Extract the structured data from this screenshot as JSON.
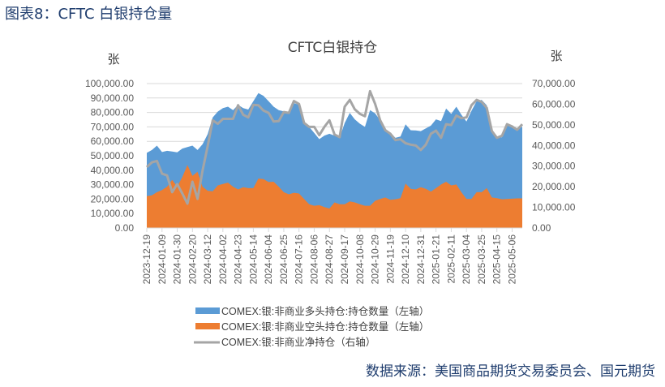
{
  "figure_title": "图表8：CFTC 白银持仓量",
  "source": "数据来源：美国商品期货交易委员会、国元期货",
  "chart_data": {
    "type": "area",
    "title": "CFTC白银持仓",
    "ylabel_left": "张",
    "ylabel_right": "张",
    "ylim_left": [
      0,
      100000
    ],
    "ylim_right": [
      0,
      70000
    ],
    "yticks_left": [
      "0.00",
      "10,000.00",
      "20,000.00",
      "30,000.00",
      "40,000.00",
      "50,000.00",
      "60,000.00",
      "70,000.00",
      "80,000.00",
      "90,000.00",
      "100,000.00"
    ],
    "yticks_right": [
      "0.00",
      "10,000.00",
      "20,000.00",
      "30,000.00",
      "40,000.00",
      "50,000.00",
      "60,000.00",
      "70,000.00"
    ],
    "grid": true,
    "legend_position": "bottom-left",
    "x_tick_labels": [
      "2023-12-19",
      "2024-01-09",
      "2024-01-30",
      "2024-02-20",
      "2024-03-12",
      "2024-04-02",
      "2024-04-23",
      "2024-05-14",
      "2024-06-04",
      "2024-06-25",
      "2024-07-16",
      "2024-08-06",
      "2024-08-27",
      "2024-09-17",
      "2024-10-08",
      "2024-10-29",
      "2024-11-19",
      "2024-12-10",
      "2024-12-31",
      "2025-01-21",
      "2025-02-11",
      "2025-03-04",
      "2025-03-25",
      "2025-04-15",
      "2025-05-06"
    ],
    "x": [
      "2023-12-19",
      "2023-12-26",
      "2024-01-02",
      "2024-01-09",
      "2024-01-16",
      "2024-01-23",
      "2024-01-30",
      "2024-02-06",
      "2024-02-13",
      "2024-02-20",
      "2024-02-27",
      "2024-03-05",
      "2024-03-12",
      "2024-03-19",
      "2024-03-26",
      "2024-04-02",
      "2024-04-09",
      "2024-04-16",
      "2024-04-23",
      "2024-04-30",
      "2024-05-07",
      "2024-05-14",
      "2024-05-21",
      "2024-05-28",
      "2024-06-04",
      "2024-06-11",
      "2024-06-18",
      "2024-06-25",
      "2024-07-02",
      "2024-07-09",
      "2024-07-16",
      "2024-07-23",
      "2024-07-30",
      "2024-08-06",
      "2024-08-13",
      "2024-08-20",
      "2024-08-27",
      "2024-09-03",
      "2024-09-10",
      "2024-09-17",
      "2024-09-24",
      "2024-10-01",
      "2024-10-08",
      "2024-10-15",
      "2024-10-22",
      "2024-10-29",
      "2024-11-05",
      "2024-11-12",
      "2024-11-19",
      "2024-11-26",
      "2024-12-03",
      "2024-12-10",
      "2024-12-17",
      "2024-12-24",
      "2024-12-31",
      "2025-01-07",
      "2025-01-14",
      "2025-01-21",
      "2025-01-28",
      "2025-02-04",
      "2025-02-11",
      "2025-02-18",
      "2025-02-25",
      "2025-03-04",
      "2025-03-11",
      "2025-03-18",
      "2025-03-25",
      "2025-04-01",
      "2025-04-08",
      "2025-04-15",
      "2025-04-22",
      "2025-04-29",
      "2025-05-06",
      "2025-05-13",
      "2025-05-20"
    ],
    "series": [
      {
        "name": "COMEX:银:非商业多头持仓:持仓数量（左轴）",
        "axis": "left",
        "kind": "area",
        "color": "#5b9bd5",
        "values": [
          52000,
          54000,
          57000,
          52600,
          53400,
          53000,
          52400,
          55000,
          56000,
          57000,
          54000,
          58000,
          65000,
          76500,
          80600,
          83000,
          84000,
          81600,
          85300,
          83000,
          82000,
          87800,
          93400,
          91500,
          87800,
          84000,
          81600,
          80800,
          80300,
          86500,
          85300,
          73700,
          70000,
          65800,
          61500,
          64000,
          65200,
          64000,
          62400,
          72700,
          79700,
          75200,
          72200,
          70000,
          81600,
          79300,
          74600,
          68400,
          66200,
          62400,
          63300,
          71800,
          67700,
          67500,
          67100,
          69000,
          70900,
          75200,
          74000,
          82700,
          79000,
          84000,
          78400,
          73700,
          81200,
          87800,
          88700,
          85000,
          68000,
          63300,
          62800,
          71800,
          70900,
          69000,
          70000
        ]
      },
      {
        "name": "COMEX:银:非商业空头持仓:持仓数量（左轴）",
        "axis": "left",
        "kind": "area",
        "color": "#ed7d31",
        "values": [
          22000,
          22600,
          24800,
          26300,
          28600,
          33300,
          28600,
          35200,
          43600,
          36100,
          38900,
          28600,
          25800,
          25400,
          29500,
          30500,
          31400,
          28600,
          26700,
          28200,
          27600,
          27600,
          34200,
          33800,
          31800,
          32000,
          28600,
          24800,
          23300,
          24400,
          23900,
          20100,
          16400,
          15400,
          15800,
          14500,
          13500,
          17700,
          16400,
          16400,
          18400,
          17700,
          16400,
          15400,
          15400,
          18800,
          20100,
          21100,
          19500,
          19900,
          20700,
          30800,
          27100,
          26700,
          28200,
          27100,
          25200,
          27600,
          30100,
          32000,
          29500,
          30100,
          24800,
          20100,
          20100,
          24800,
          24800,
          27600,
          21100,
          20700,
          19900,
          20100,
          20300,
          20500,
          20500
        ]
      },
      {
        "name": "COMEX:银:非商业净持仓（右轴）",
        "axis": "right",
        "kind": "line",
        "color": "#a5a5a5",
        "values": [
          29500,
          31800,
          32500,
          26300,
          25500,
          17400,
          21300,
          16700,
          11800,
          22400,
          14100,
          27900,
          39700,
          52200,
          50500,
          52900,
          52900,
          52900,
          59500,
          54900,
          53600,
          59700,
          59500,
          56900,
          55800,
          51600,
          51800,
          56200,
          55800,
          61500,
          60100,
          50900,
          49000,
          49000,
          45000,
          49000,
          52200,
          45300,
          44000,
          58800,
          62100,
          57500,
          55300,
          54200,
          66300,
          60100,
          52200,
          47400,
          45700,
          42600,
          43000,
          41100,
          40400,
          40000,
          37800,
          40400,
          45700,
          47200,
          43700,
          50300,
          49900,
          54500,
          53200,
          53600,
          59500,
          62100,
          61100,
          58200,
          47000,
          43700,
          44700,
          50300,
          49200,
          47600,
          50300
        ]
      }
    ]
  }
}
